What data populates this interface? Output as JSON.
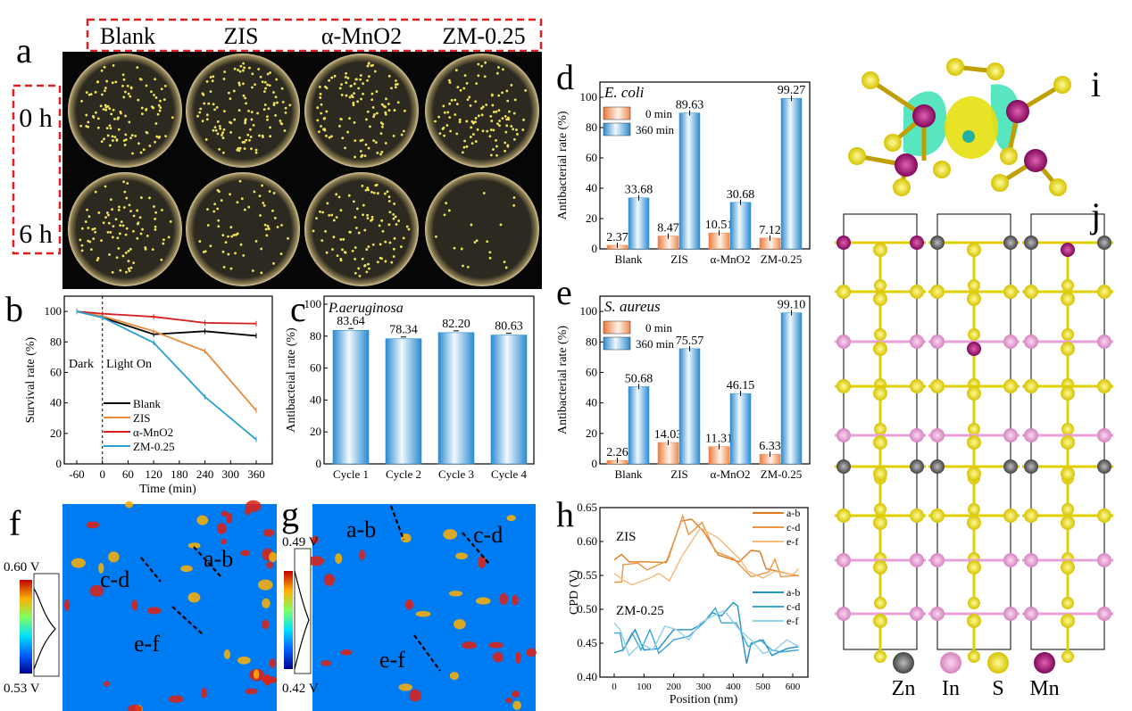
{
  "panel_labels": {
    "a": "a",
    "b": "b",
    "c": "c",
    "d": "d",
    "e": "e",
    "f": "f",
    "g": "g",
    "h": "h",
    "i": "i",
    "j": "j"
  },
  "panel_a": {
    "columns": [
      "Blank",
      "ZIS",
      "α-MnO2",
      "ZM-0.25"
    ],
    "rows": [
      "0 h",
      "6 h"
    ]
  },
  "panel_f": {
    "scale_max": "0.60 V",
    "scale_min": "0.53 V",
    "lines": [
      "a-b",
      "c-d",
      "e-f"
    ]
  },
  "panel_g": {
    "scale_max": "0.49 V",
    "scale_min": "0.42 V",
    "lines": [
      "a-b",
      "c-d",
      "e-f"
    ]
  },
  "panel_j": {
    "legend": [
      {
        "label": "Zn",
        "color": "#555555"
      },
      {
        "label": "In",
        "color": "#e59ad0"
      },
      {
        "label": "S",
        "color": "#e8d800"
      },
      {
        "label": "Mn",
        "color": "#a0106a"
      }
    ]
  },
  "chart_data": [
    {
      "id": "b",
      "type": "line",
      "xlabel": "Time (min)",
      "ylabel": "Survival rate (%)",
      "xlim": [
        -90,
        390
      ],
      "ylim": [
        0,
        110
      ],
      "xticks": [
        "-60",
        "0",
        "60",
        "120",
        "180",
        "240",
        "300",
        "360"
      ],
      "yticks": [
        "0",
        "20",
        "40",
        "60",
        "80",
        "100"
      ],
      "annotations": [
        "Dark",
        "Light On"
      ],
      "legend": "lower-center",
      "x": [
        -60,
        0,
        120,
        240,
        360
      ],
      "series": [
        {
          "name": "Blank",
          "color": "#000000",
          "values": [
            100,
            96,
            85,
            87,
            84
          ]
        },
        {
          "name": "ZIS",
          "color": "#e8893a",
          "values": [
            100,
            97,
            87,
            74,
            35
          ]
        },
        {
          "name": "α-MnO2",
          "color": "#d81e1e",
          "values": [
            100,
            98.5,
            96.5,
            92.5,
            92
          ]
        },
        {
          "name": "ZM-0.25",
          "color": "#2aa0d4",
          "values": [
            100,
            96,
            79.5,
            44,
            16
          ]
        }
      ]
    },
    {
      "id": "c",
      "type": "bar",
      "title": "P.aeruginosa",
      "ylabel": "Antibacteial rate (%)",
      "ylim": [
        0,
        105
      ],
      "yticks": [
        "0",
        "20",
        "40",
        "60",
        "80",
        "100"
      ],
      "categories": [
        "Cycle 1",
        "Cycle 2",
        "Cycle 3",
        "Cycle 4"
      ],
      "values": [
        83.64,
        78.34,
        82.2,
        80.63
      ],
      "labels": [
        "83.64",
        "78.34",
        "82.20",
        "80.63"
      ]
    },
    {
      "id": "d",
      "type": "bar",
      "title": "E. coli",
      "ylabel": "Antibacterial rate (%)",
      "ylim": [
        0,
        110
      ],
      "yticks": [
        "0",
        "20",
        "40",
        "60",
        "80",
        "100"
      ],
      "categories": [
        "Blank",
        "ZIS",
        "α-MnO2",
        "ZM-0.25"
      ],
      "legend": "top-left",
      "series": [
        {
          "name": "0 min",
          "color": "#f07f3c",
          "values": [
            2.37,
            8.47,
            10.51,
            7.12
          ],
          "labels": [
            "2.37",
            "8.47",
            "10.51",
            "7.12"
          ]
        },
        {
          "name": "360 min",
          "color": "#2a8fd4",
          "values": [
            33.68,
            89.63,
            30.68,
            99.27
          ],
          "labels": [
            "33.68",
            "89.63",
            "30.68",
            "99.27"
          ]
        }
      ]
    },
    {
      "id": "e",
      "type": "bar",
      "title": "S. aureus",
      "ylabel": "Antibacterial rate (%)",
      "ylim": [
        0,
        110
      ],
      "yticks": [
        "0",
        "20",
        "40",
        "60",
        "80",
        "100"
      ],
      "categories": [
        "Blank",
        "ZIS",
        "α-MnO2",
        "ZM-0.25"
      ],
      "legend": "top-left",
      "series": [
        {
          "name": "0 min",
          "color": "#f07f3c",
          "values": [
            2.26,
            14.03,
            11.31,
            6.33
          ],
          "labels": [
            "2.26",
            "14.03",
            "11.31",
            "6.33"
          ]
        },
        {
          "name": "360 min",
          "color": "#2a8fd4",
          "values": [
            50.68,
            75.57,
            46.15,
            99.1
          ],
          "labels": [
            "50.68",
            "75.57",
            "46.15",
            "99.10"
          ]
        }
      ]
    },
    {
      "id": "h",
      "type": "line",
      "xlabel": "Position (nm)",
      "ylabel": "CPD (V)",
      "xlim": [
        -30,
        650
      ],
      "ylim": [
        0.4,
        0.65
      ],
      "xticks": [
        "0",
        "100",
        "200",
        "300",
        "400",
        "500",
        "600"
      ],
      "yticks": [
        "0.40",
        "0.45",
        "0.50",
        "0.55",
        "0.60",
        "0.65"
      ],
      "annotations": [
        "ZIS",
        "ZM-0.25"
      ],
      "legend": "right",
      "series": [
        {
          "name": "a-b",
          "group": "ZIS",
          "color": "#e07a1c",
          "points": [
            [
              0,
              0.573
            ],
            [
              25,
              0.581
            ],
            [
              50,
              0.57
            ],
            [
              100,
              0.57
            ],
            [
              175,
              0.569
            ],
            [
              225,
              0.63
            ],
            [
              260,
              0.633
            ],
            [
              300,
              0.615
            ],
            [
              350,
              0.58
            ],
            [
              420,
              0.57
            ],
            [
              460,
              0.587
            ],
            [
              490,
              0.585
            ],
            [
              510,
              0.56
            ],
            [
              560,
              0.555
            ],
            [
              620,
              0.549
            ]
          ]
        },
        {
          "name": "c-d",
          "group": "ZIS",
          "color": "#ec9440",
          "points": [
            [
              0,
              0.54
            ],
            [
              25,
              0.54
            ],
            [
              30,
              0.566
            ],
            [
              80,
              0.568
            ],
            [
              110,
              0.558
            ],
            [
              180,
              0.572
            ],
            [
              230,
              0.638
            ],
            [
              250,
              0.61
            ],
            [
              295,
              0.628
            ],
            [
              340,
              0.585
            ],
            [
              400,
              0.575
            ],
            [
              460,
              0.548
            ],
            [
              520,
              0.555
            ],
            [
              540,
              0.574
            ],
            [
              560,
              0.548
            ],
            [
              620,
              0.55
            ]
          ]
        },
        {
          "name": "e-f",
          "group": "ZIS",
          "color": "#f5b97a",
          "points": [
            [
              0,
              0.553
            ],
            [
              30,
              0.543
            ],
            [
              60,
              0.536
            ],
            [
              120,
              0.546
            ],
            [
              150,
              0.553
            ],
            [
              185,
              0.542
            ],
            [
              230,
              0.58
            ],
            [
              290,
              0.62
            ],
            [
              350,
              0.605
            ],
            [
              420,
              0.575
            ],
            [
              450,
              0.556
            ],
            [
              500,
              0.546
            ],
            [
              540,
              0.556
            ],
            [
              600,
              0.551
            ],
            [
              620,
              0.56
            ]
          ]
        },
        {
          "name": "a-b",
          "group": "ZM-0.25",
          "color": "#1f8fc8",
          "points": [
            [
              0,
              0.436
            ],
            [
              30,
              0.44
            ],
            [
              70,
              0.47
            ],
            [
              100,
              0.44
            ],
            [
              150,
              0.442
            ],
            [
              200,
              0.47
            ],
            [
              260,
              0.47
            ],
            [
              300,
              0.48
            ],
            [
              330,
              0.495
            ],
            [
              360,
              0.49
            ],
            [
              400,
              0.51
            ],
            [
              415,
              0.505
            ],
            [
              430,
              0.46
            ],
            [
              445,
              0.42
            ],
            [
              460,
              0.45
            ],
            [
              500,
              0.455
            ],
            [
              530,
              0.432
            ],
            [
              580,
              0.442
            ],
            [
              620,
              0.445
            ]
          ]
        },
        {
          "name": "c-d",
          "group": "ZM-0.25",
          "color": "#3aa6d8",
          "points": [
            [
              0,
              0.465
            ],
            [
              20,
              0.465
            ],
            [
              30,
              0.44
            ],
            [
              60,
              0.465
            ],
            [
              90,
              0.44
            ],
            [
              120,
              0.47
            ],
            [
              150,
              0.435
            ],
            [
              200,
              0.455
            ],
            [
              250,
              0.46
            ],
            [
              300,
              0.48
            ],
            [
              340,
              0.502
            ],
            [
              360,
              0.48
            ],
            [
              410,
              0.48
            ],
            [
              450,
              0.445
            ],
            [
              490,
              0.455
            ],
            [
              530,
              0.44
            ],
            [
              560,
              0.437
            ],
            [
              620,
              0.44
            ]
          ]
        },
        {
          "name": "e-f",
          "group": "ZM-0.25",
          "color": "#8fd0ea",
          "points": [
            [
              0,
              0.48
            ],
            [
              20,
              0.47
            ],
            [
              50,
              0.432
            ],
            [
              90,
              0.45
            ],
            [
              130,
              0.44
            ],
            [
              170,
              0.475
            ],
            [
              210,
              0.47
            ],
            [
              250,
              0.455
            ],
            [
              290,
              0.48
            ],
            [
              330,
              0.49
            ],
            [
              370,
              0.498
            ],
            [
              420,
              0.47
            ],
            [
              460,
              0.455
            ],
            [
              500,
              0.435
            ],
            [
              540,
              0.44
            ],
            [
              580,
              0.455
            ],
            [
              620,
              0.445
            ]
          ]
        }
      ]
    }
  ]
}
